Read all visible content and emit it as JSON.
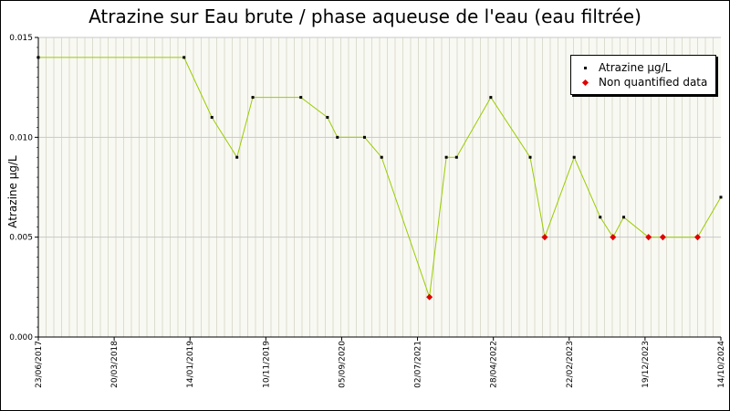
{
  "chart_data": {
    "type": "line",
    "title": "Atrazine sur Eau brute / phase aqueuse de l'eau (eau filtrée)",
    "ylabel": "Atrazine µg/L",
    "xlabel": "",
    "ylim": [
      0,
      0.015
    ],
    "yticks": [
      "0.000",
      "0.005",
      "0.010",
      "0.015"
    ],
    "xlim": [
      "2017-06-23",
      "2024-10-14"
    ],
    "xtick_labels": [
      "23/06/2017",
      "20/03/2018",
      "14/01/2019",
      "10/11/2019",
      "05/09/2020",
      "02/07/2021",
      "28/04/2022",
      "22/02/2023",
      "19/12/2023",
      "14/10/2024"
    ],
    "grid": true,
    "legend_position": "top-right",
    "series": [
      {
        "name": "Atrazine µg/L",
        "color": "#99cc00",
        "points": [
          {
            "x": "2017-06-23",
            "y": 0.014,
            "quantified": true
          },
          {
            "x": "2019-01-14",
            "y": 0.014,
            "quantified": true
          },
          {
            "x": "2019-05-03",
            "y": 0.011,
            "quantified": true
          },
          {
            "x": "2019-08-09",
            "y": 0.009,
            "quantified": true
          },
          {
            "x": "2019-10-10",
            "y": 0.012,
            "quantified": true
          },
          {
            "x": "2020-04-15",
            "y": 0.012,
            "quantified": true
          },
          {
            "x": "2020-07-28",
            "y": 0.011,
            "quantified": true
          },
          {
            "x": "2020-09-05",
            "y": 0.01,
            "quantified": true
          },
          {
            "x": "2020-12-20",
            "y": 0.01,
            "quantified": true
          },
          {
            "x": "2021-02-25",
            "y": 0.009,
            "quantified": true
          },
          {
            "x": "2021-08-31",
            "y": 0.002,
            "quantified": false
          },
          {
            "x": "2021-11-05",
            "y": 0.009,
            "quantified": true
          },
          {
            "x": "2021-12-15",
            "y": 0.009,
            "quantified": true
          },
          {
            "x": "2022-04-28",
            "y": 0.012,
            "quantified": true
          },
          {
            "x": "2022-09-29",
            "y": 0.009,
            "quantified": true
          },
          {
            "x": "2022-11-25",
            "y": 0.005,
            "quantified": false
          },
          {
            "x": "2023-03-20",
            "y": 0.009,
            "quantified": true
          },
          {
            "x": "2023-06-30",
            "y": 0.006,
            "quantified": true
          },
          {
            "x": "2023-08-19",
            "y": 0.005,
            "quantified": false
          },
          {
            "x": "2023-09-30",
            "y": 0.006,
            "quantified": true
          },
          {
            "x": "2024-01-05",
            "y": 0.005,
            "quantified": false
          },
          {
            "x": "2024-03-01",
            "y": 0.005,
            "quantified": false
          },
          {
            "x": "2024-07-15",
            "y": 0.005,
            "quantified": false
          },
          {
            "x": "2024-10-14",
            "y": 0.007,
            "quantified": true
          }
        ]
      }
    ],
    "legend": [
      {
        "label": "Atrazine µg/L",
        "marker_color": "#000000"
      },
      {
        "label": "Non quantified data",
        "marker_color": "#e00000"
      }
    ]
  }
}
